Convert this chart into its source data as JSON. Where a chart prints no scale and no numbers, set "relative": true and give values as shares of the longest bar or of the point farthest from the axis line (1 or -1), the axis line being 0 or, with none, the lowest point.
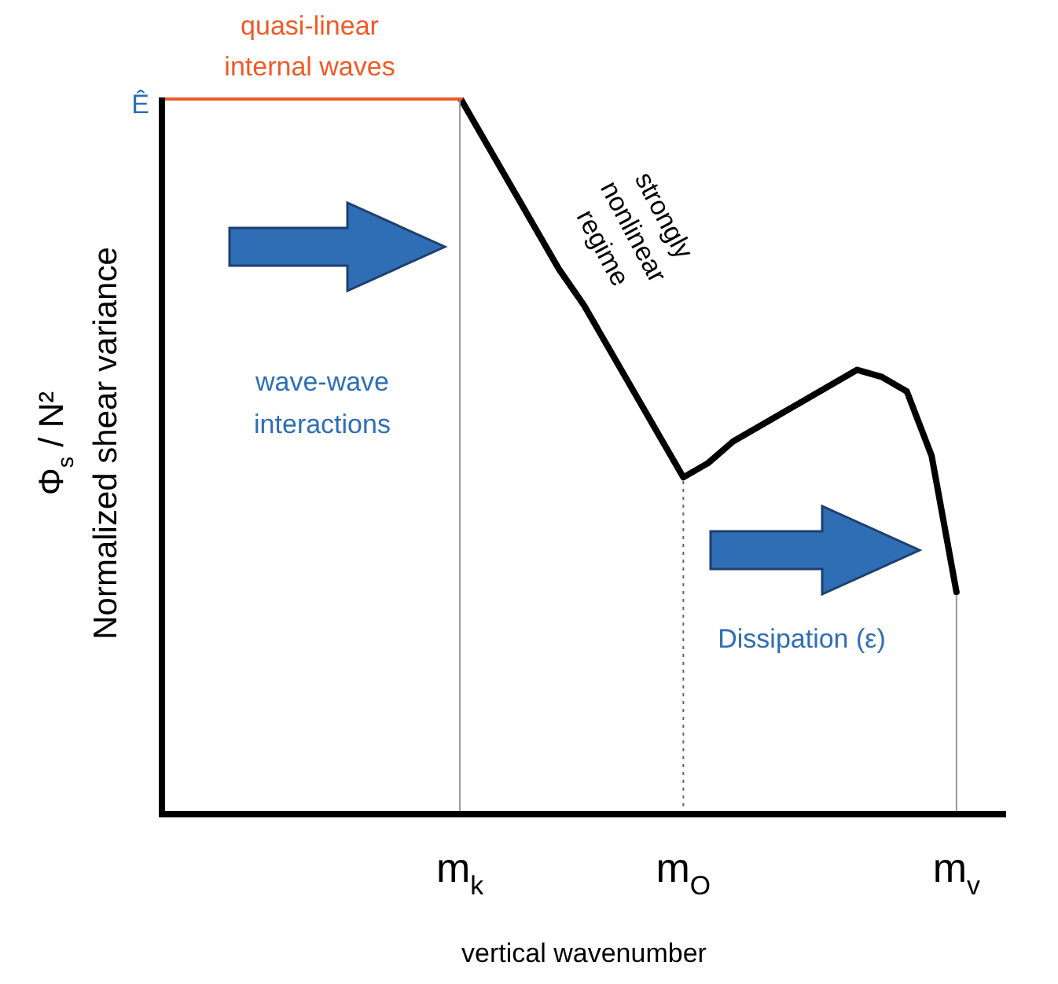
{
  "chart_data": {
    "type": "line",
    "relative": true,
    "xlabel": "vertical wavenumber",
    "ylabel": "Normalized shear variance",
    "categories": [
      null,
      null,
      null,
      null,
      null,
      null,
      null,
      null,
      null,
      null,
      null,
      null,
      "m$_{k}$",
      null,
      null,
      null,
      null,
      null,
      null,
      null,
      null,
      "m$_{O}$",
      null,
      null,
      null,
      null,
      null,
      null,
      null,
      null,
      null,
      null,
      "m$_{v}$",
      null,
      null
    ],
    "series": [
      {
        "color": "#f05a28",
        "values": [
          1,
          1,
          1,
          1,
          1,
          1,
          1,
          1,
          1,
          1,
          1,
          1,
          1,
          null,
          null,
          null,
          null,
          null,
          null,
          null,
          null,
          null,
          null,
          null,
          null,
          null,
          null,
          null,
          null,
          null,
          null,
          null,
          null,
          null,
          null
        ]
      },
      {
        "color": "#000000",
        "values": [
          null,
          null,
          null,
          null,
          null,
          null,
          null,
          null,
          null,
          null,
          null,
          null,
          1,
          0.94,
          0.88,
          0.82,
          0.76,
          0.71,
          0.65,
          0.59,
          0.53,
          0.47,
          0.49,
          0.52,
          0.54,
          0.56,
          0.58,
          0.6,
          0.62,
          0.61,
          0.59,
          0.5,
          0.31,
          null,
          null
        ]
      }
    ],
    "ref_lines": [
      {
        "axis": "x",
        "value": "m$_{k}$",
        "color": "#999999",
        "line_style": "solid"
      },
      {
        "axis": "x",
        "value": "m$_{O}$",
        "color": "#666666",
        "line_style": "dotted"
      },
      {
        "axis": "x",
        "value": "m$_{v}$",
        "color": "#999999",
        "line_style": "solid"
      }
    ],
    "annotations": [
      "quasi-linear\ninternal waves",
      "strongly\nnonlinear\nregime",
      "wave-wave\ninteractions",
      "Dissipation (ε)",
      "Ê",
      "Φ$_{s}$ / N²"
    ],
    "legend": false,
    "marker": "none",
    "line_style": "solid"
  }
}
